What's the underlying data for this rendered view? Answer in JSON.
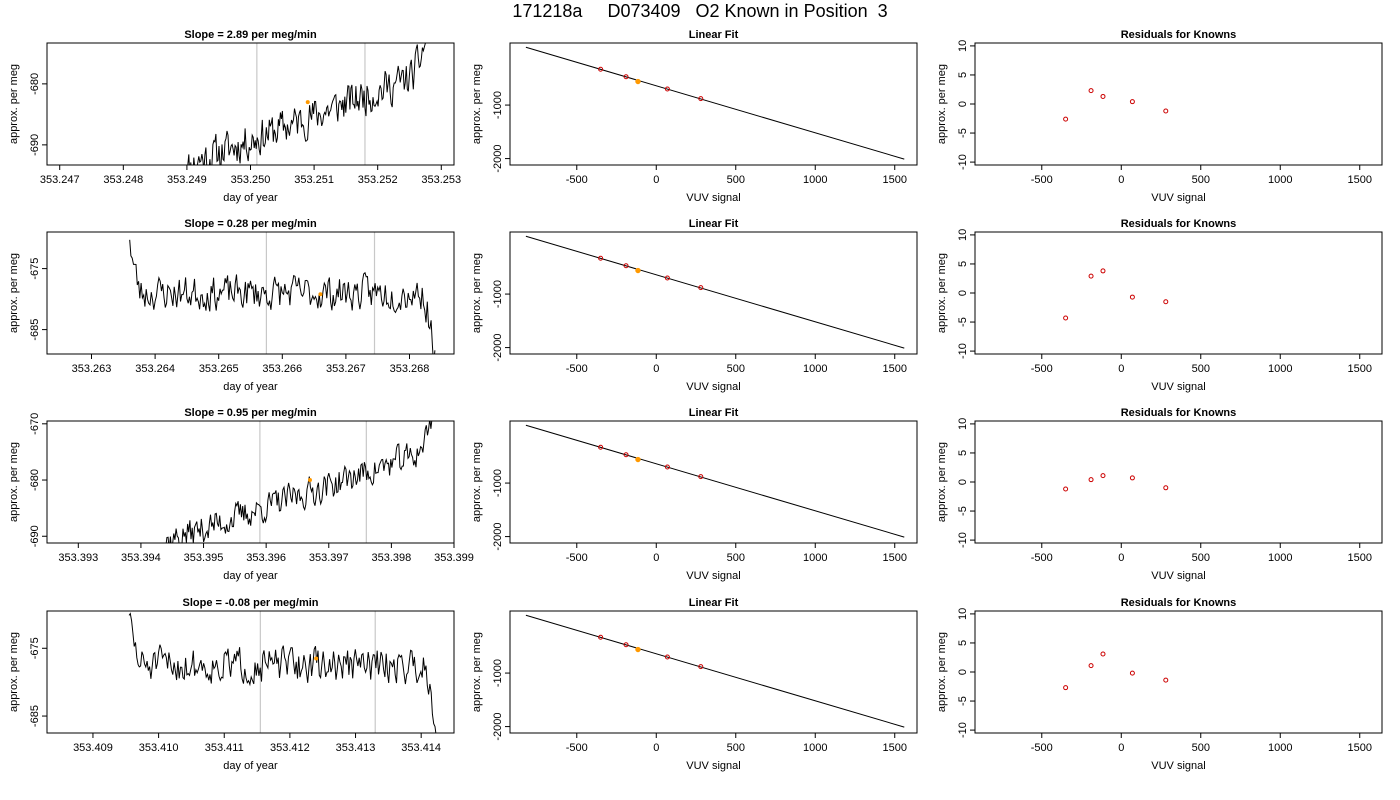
{
  "figure": {
    "title": "171218a     D073409   O2 Known in Position  3"
  },
  "chart_data": [
    {
      "type": "line",
      "panel": "timeseries",
      "row": 0,
      "title": "Slope =  2.89  per meg/min",
      "xlabel": "day of year",
      "ylabel": "approx. per meg",
      "xlim": [
        353.2468,
        353.2532
      ],
      "ylim": [
        -693.3,
        -673.3
      ],
      "xticks": [
        353.247,
        353.248,
        353.249,
        353.25,
        353.251,
        353.252,
        353.253
      ],
      "xtick_labels": [
        "353.247",
        "353.248",
        "353.249",
        "353.250",
        "353.251",
        "353.252",
        "353.253"
      ],
      "yticks": [
        -680,
        -690
      ],
      "ytick_labels": [
        "-680",
        "-690"
      ],
      "vlines": [
        353.2501,
        353.2518
      ],
      "highlight_point": {
        "x": 353.2509,
        "y": -683.0
      },
      "trace": {
        "x_start": 353.24895,
        "x_end": 353.25275,
        "start": -693.5,
        "end": -673.0,
        "dip_at": 0.04,
        "noise": 3.0,
        "seed": 11
      }
    },
    {
      "type": "line",
      "panel": "linear_fit",
      "row": 0,
      "title": "Linear Fit",
      "xlabel": "VUV signal",
      "ylabel": "approx. per meg",
      "xlim": [
        -920,
        1640
      ],
      "ylim": [
        -2120,
        160
      ],
      "xticks": [
        -500,
        0,
        500,
        1000,
        1500
      ],
      "xtick_labels": [
        "-500",
        "0",
        "500",
        "1000",
        "1500"
      ],
      "yticks": [
        -1000,
        -2000
      ],
      "ytick_labels": [
        "-1000",
        "-2000"
      ],
      "fit_line": {
        "x": [
          -820,
          1560
        ],
        "y": [
          80,
          -2010
        ]
      },
      "known_points": [
        {
          "x": -350,
          "y": -330
        },
        {
          "x": -190,
          "y": -470
        },
        {
          "x": 70,
          "y": -700
        },
        {
          "x": 280,
          "y": -880
        }
      ],
      "sample_point": {
        "x": -115,
        "y": -560
      }
    },
    {
      "type": "scatter",
      "panel": "residuals",
      "row": 0,
      "title": "Residuals for Knowns",
      "xlabel": "VUV signal",
      "ylabel": "approx. per meg",
      "xlim": [
        -920,
        1640
      ],
      "ylim": [
        -10.5,
        10.5
      ],
      "xticks": [
        -500,
        0,
        500,
        1000,
        1500
      ],
      "xtick_labels": [
        "-500",
        "0",
        "500",
        "1000",
        "1500"
      ],
      "yticks": [
        10,
        5,
        0,
        -5,
        -10
      ],
      "ytick_labels": [
        "10",
        "5",
        "0",
        "-5",
        "-10"
      ],
      "points": [
        {
          "x": -350,
          "y": -2.6
        },
        {
          "x": -190,
          "y": 2.3
        },
        {
          "x": -115,
          "y": 1.3
        },
        {
          "x": 70,
          "y": 0.4
        },
        {
          "x": 280,
          "y": -1.2
        }
      ]
    },
    {
      "type": "line",
      "panel": "timeseries",
      "row": 1,
      "title": "Slope =  0.28  per meg/min",
      "xlabel": "day of year",
      "ylabel": "approx. per meg",
      "xlim": [
        353.2623,
        353.2687
      ],
      "ylim": [
        -689.0,
        -669.0
      ],
      "xticks": [
        353.263,
        353.264,
        353.265,
        353.266,
        353.267,
        353.268
      ],
      "xtick_labels": [
        "353.263",
        "353.264",
        "353.265",
        "353.266",
        "353.267",
        "353.268"
      ],
      "yticks": [
        -675,
        -685
      ],
      "ytick_labels": [
        "-675",
        "-685"
      ],
      "vlines": [
        353.26575,
        353.26745
      ],
      "highlight_point": {
        "x": 353.2666,
        "y": -679.2
      },
      "trace": {
        "x_start": 353.2636,
        "x_end": 353.2684,
        "start": -669.0,
        "end": -689.5,
        "dip_at": 0.0,
        "noise": 2.8,
        "seed": 23,
        "baseline": -679.0
      }
    },
    {
      "type": "line",
      "panel": "linear_fit",
      "row": 1,
      "title": "Linear Fit",
      "xlabel": "VUV signal",
      "ylabel": "approx. per meg",
      "xlim": [
        -920,
        1640
      ],
      "ylim": [
        -2120,
        160
      ],
      "xticks": [
        -500,
        0,
        500,
        1000,
        1500
      ],
      "xtick_labels": [
        "-500",
        "0",
        "500",
        "1000",
        "1500"
      ],
      "yticks": [
        -1000,
        -2000
      ],
      "ytick_labels": [
        "-1000",
        "-2000"
      ],
      "fit_line": {
        "x": [
          -820,
          1560
        ],
        "y": [
          80,
          -2010
        ]
      },
      "known_points": [
        {
          "x": -350,
          "y": -330
        },
        {
          "x": -190,
          "y": -470
        },
        {
          "x": 70,
          "y": -700
        },
        {
          "x": 280,
          "y": -880
        }
      ],
      "sample_point": {
        "x": -115,
        "y": -560
      }
    },
    {
      "type": "scatter",
      "panel": "residuals",
      "row": 1,
      "title": "Residuals for Knowns",
      "xlabel": "VUV signal",
      "ylabel": "approx. per meg",
      "xlim": [
        -920,
        1640
      ],
      "ylim": [
        -10.5,
        10.5
      ],
      "xticks": [
        -500,
        0,
        500,
        1000,
        1500
      ],
      "xtick_labels": [
        "-500",
        "0",
        "500",
        "1000",
        "1500"
      ],
      "yticks": [
        10,
        5,
        0,
        -5,
        -10
      ],
      "ytick_labels": [
        "10",
        "5",
        "0",
        "-5",
        "-10"
      ],
      "points": [
        {
          "x": -350,
          "y": -4.3
        },
        {
          "x": -190,
          "y": 2.9
        },
        {
          "x": -115,
          "y": 3.8
        },
        {
          "x": 70,
          "y": -0.7
        },
        {
          "x": 280,
          "y": -1.5
        }
      ]
    },
    {
      "type": "line",
      "panel": "timeseries",
      "row": 2,
      "title": "Slope =  0.95  per meg/min",
      "xlabel": "day of year",
      "ylabel": "approx. per meg",
      "xlim": [
        353.3925,
        353.399
      ],
      "ylim": [
        -691.2,
        -669.5
      ],
      "xticks": [
        353.393,
        353.394,
        353.395,
        353.396,
        353.397,
        353.398,
        353.399
      ],
      "xtick_labels": [
        "353.393",
        "353.394",
        "353.395",
        "353.396",
        "353.397",
        "353.398",
        "353.399"
      ],
      "yticks": [
        -670,
        -680,
        -690
      ],
      "ytick_labels": [
        "-670",
        "-680",
        "-690"
      ],
      "vlines": [
        353.3959,
        353.3976
      ],
      "highlight_point": {
        "x": 353.3967,
        "y": -680.0
      },
      "trace": {
        "x_start": 353.39425,
        "x_end": 353.39865,
        "start": -691.5,
        "end": -669.0,
        "dip_at": 0.03,
        "noise": 2.6,
        "seed": 37
      }
    },
    {
      "type": "line",
      "panel": "linear_fit",
      "row": 2,
      "title": "Linear Fit",
      "xlabel": "VUV signal",
      "ylabel": "approx. per meg",
      "xlim": [
        -920,
        1640
      ],
      "ylim": [
        -2120,
        160
      ],
      "xticks": [
        -500,
        0,
        500,
        1000,
        1500
      ],
      "xtick_labels": [
        "-500",
        "0",
        "500",
        "1000",
        "1500"
      ],
      "yticks": [
        -1000,
        -2000
      ],
      "ytick_labels": [
        "-1000",
        "-2000"
      ],
      "fit_line": {
        "x": [
          -820,
          1560
        ],
        "y": [
          80,
          -2010
        ]
      },
      "known_points": [
        {
          "x": -350,
          "y": -330
        },
        {
          "x": -190,
          "y": -470
        },
        {
          "x": 70,
          "y": -700
        },
        {
          "x": 280,
          "y": -880
        }
      ],
      "sample_point": {
        "x": -115,
        "y": -560
      }
    },
    {
      "type": "scatter",
      "panel": "residuals",
      "row": 2,
      "title": "Residuals for Knowns",
      "xlabel": "VUV signal",
      "ylabel": "approx. per meg",
      "xlim": [
        -920,
        1640
      ],
      "ylim": [
        -10.5,
        10.5
      ],
      "xticks": [
        -500,
        0,
        500,
        1000,
        1500
      ],
      "xtick_labels": [
        "-500",
        "0",
        "500",
        "1000",
        "1500"
      ],
      "yticks": [
        10,
        5,
        0,
        -5,
        -10
      ],
      "ytick_labels": [
        "10",
        "5",
        "0",
        "-5",
        "-10"
      ],
      "points": [
        {
          "x": -350,
          "y": -1.2
        },
        {
          "x": -190,
          "y": 0.4
        },
        {
          "x": -115,
          "y": 1.1
        },
        {
          "x": 70,
          "y": 0.7
        },
        {
          "x": 280,
          "y": -1.0
        }
      ]
    },
    {
      "type": "line",
      "panel": "timeseries",
      "row": 3,
      "title": "Slope =  -0.08  per meg/min",
      "xlabel": "day of year",
      "ylabel": "approx. per meg",
      "xlim": [
        353.4083,
        353.4145
      ],
      "ylim": [
        -687.5,
        -669.5
      ],
      "xticks": [
        353.409,
        353.41,
        353.411,
        353.412,
        353.413,
        353.414
      ],
      "xtick_labels": [
        "353.409",
        "353.410",
        "353.411",
        "353.412",
        "353.413",
        "353.414"
      ],
      "yticks": [
        -675,
        -685
      ],
      "ytick_labels": [
        "-675",
        "-685"
      ],
      "vlines": [
        353.41155,
        353.4133
      ],
      "highlight_point": {
        "x": 353.4124,
        "y": -676.5
      },
      "trace": {
        "x_start": 353.40955,
        "x_end": 353.41425,
        "start": -669.0,
        "end": -688.0,
        "dip_at": 0.0,
        "noise": 2.6,
        "seed": 51,
        "baseline": -677.5
      }
    },
    {
      "type": "line",
      "panel": "linear_fit",
      "row": 3,
      "title": "Linear Fit",
      "xlabel": "VUV signal",
      "ylabel": "approx. per meg",
      "xlim": [
        -920,
        1640
      ],
      "ylim": [
        -2120,
        160
      ],
      "xticks": [
        -500,
        0,
        500,
        1000,
        1500
      ],
      "xtick_labels": [
        "-500",
        "0",
        "500",
        "1000",
        "1500"
      ],
      "yticks": [
        -1000,
        -2000
      ],
      "ytick_labels": [
        "-1000",
        "-2000"
      ],
      "fit_line": {
        "x": [
          -820,
          1560
        ],
        "y": [
          80,
          -2010
        ]
      },
      "known_points": [
        {
          "x": -350,
          "y": -330
        },
        {
          "x": -190,
          "y": -470
        },
        {
          "x": 70,
          "y": -700
        },
        {
          "x": 280,
          "y": -880
        }
      ],
      "sample_point": {
        "x": -115,
        "y": -560
      }
    },
    {
      "type": "scatter",
      "panel": "residuals",
      "row": 3,
      "title": "Residuals for Knowns",
      "xlabel": "VUV signal",
      "ylabel": "approx. per meg",
      "xlim": [
        -920,
        1640
      ],
      "ylim": [
        -10.5,
        10.5
      ],
      "xticks": [
        -500,
        0,
        500,
        1000,
        1500
      ],
      "xtick_labels": [
        "-500",
        "0",
        "500",
        "1000",
        "1500"
      ],
      "yticks": [
        10,
        5,
        0,
        -5,
        -10
      ],
      "ytick_labels": [
        "10",
        "5",
        "0",
        "-5",
        "-10"
      ],
      "points": [
        {
          "x": -350,
          "y": -2.7
        },
        {
          "x": -190,
          "y": 1.1
        },
        {
          "x": -115,
          "y": 3.1
        },
        {
          "x": 70,
          "y": -0.2
        },
        {
          "x": 280,
          "y": -1.4
        }
      ]
    }
  ],
  "colors": {
    "axis": "#000000",
    "trace": "#000000",
    "vline": "#c8c8c8",
    "sample": "#ff9900",
    "known": "#cc0000"
  }
}
